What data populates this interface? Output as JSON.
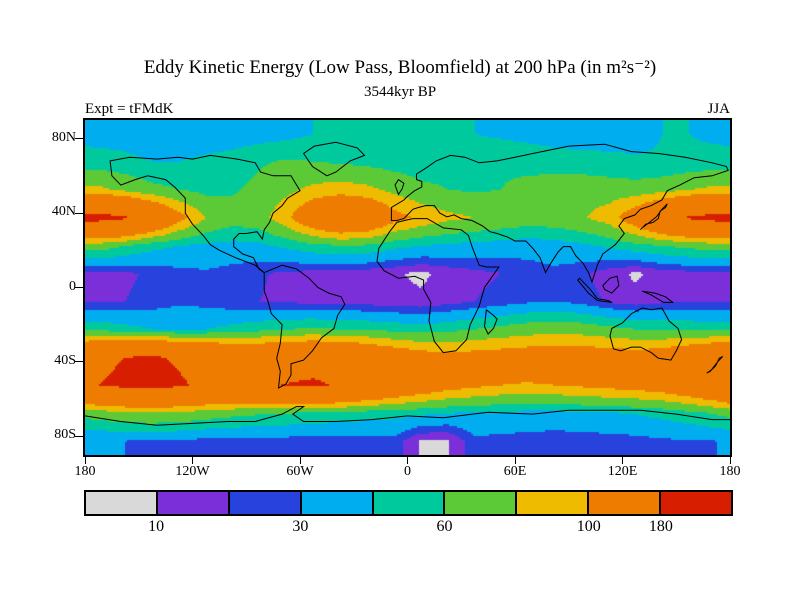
{
  "chart_data": {
    "type": "heatmap",
    "title": "Eddy Kinetic Energy (Low Pass, Bloomfield) at 200 hPa (in m²s⁻²)",
    "subtitle": "3544kyr BP",
    "annotations": {
      "top_left": "Expt = tFMdK",
      "top_right": "JJA"
    },
    "units": "m²s⁻²",
    "axes": {
      "lat_ticks": [
        {
          "label": "80N",
          "value": 80
        },
        {
          "label": "40N",
          "value": 40
        },
        {
          "label": "0",
          "value": 0
        },
        {
          "label": "40S",
          "value": -40
        },
        {
          "label": "80S",
          "value": -80
        }
      ],
      "lon_ticks": [
        {
          "label": "180",
          "value": -180
        },
        {
          "label": "120W",
          "value": -120
        },
        {
          "label": "60W",
          "value": -60
        },
        {
          "label": "0",
          "value": 0
        },
        {
          "label": "60E",
          "value": 60
        },
        {
          "label": "120E",
          "value": 120
        },
        {
          "label": "180",
          "value": 180
        }
      ],
      "lat_range": [
        -90,
        90
      ],
      "lon_range": [
        -180,
        180
      ],
      "grid_lines": false
    },
    "colorbar": {
      "colors": [
        "#d9d9d9",
        "#7a2fd8",
        "#2742dd",
        "#00aeef",
        "#00ca9d",
        "#5cc937",
        "#eebb00",
        "#ee7c00",
        "#d81e00"
      ],
      "levels": [
        10,
        20,
        30,
        45,
        60,
        80,
        100,
        180
      ],
      "labels": [
        {
          "text": "10",
          "boundary_index": 1
        },
        {
          "text": "30",
          "boundary_index": 3
        },
        {
          "text": "60",
          "boundary_index": 5
        },
        {
          "text": "100",
          "boundary_index": 7
        },
        {
          "text": "180",
          "boundary_index": 8
        }
      ]
    },
    "grid": {
      "lon_centers": [
        -172.5,
        -157.5,
        -142.5,
        -127.5,
        -112.5,
        -97.5,
        -82.5,
        -67.5,
        -52.5,
        -37.5,
        -22.5,
        -7.5,
        7.5,
        22.5,
        37.5,
        52.5,
        67.5,
        82.5,
        97.5,
        112.5,
        127.5,
        142.5,
        157.5,
        172.5
      ],
      "lat_centers": [
        82.5,
        67.5,
        52.5,
        37.5,
        22.5,
        7.5,
        -7.5,
        -22.5,
        -37.5,
        -52.5,
        -67.5,
        -82.5
      ],
      "values": [
        [
          40,
          40,
          38,
          38,
          36,
          36,
          38,
          40,
          45,
          50,
          55,
          55,
          50,
          48,
          45,
          42,
          40,
          38,
          38,
          40,
          42,
          45,
          45,
          42
        ],
        [
          50,
          48,
          45,
          45,
          48,
          52,
          58,
          62,
          60,
          58,
          55,
          52,
          50,
          52,
          55,
          58,
          55,
          52,
          50,
          48,
          46,
          46,
          48,
          50
        ],
        [
          85,
          75,
          65,
          60,
          55,
          58,
          65,
          75,
          85,
          90,
          85,
          75,
          65,
          60,
          58,
          60,
          65,
          70,
          72,
          70,
          68,
          72,
          80,
          85
        ],
        [
          195,
          185,
          150,
          110,
          80,
          68,
          72,
          95,
          130,
          150,
          140,
          110,
          95,
          85,
          80,
          75,
          70,
          72,
          78,
          90,
          120,
          160,
          185,
          195
        ],
        [
          70,
          60,
          50,
          45,
          42,
          40,
          42,
          48,
          55,
          60,
          58,
          50,
          45,
          42,
          40,
          38,
          36,
          38,
          42,
          48,
          55,
          60,
          65,
          70
        ],
        [
          16,
          18,
          22,
          26,
          28,
          25,
          21,
          18,
          16,
          15,
          13,
          11,
          8,
          13,
          17,
          20,
          24,
          27,
          22,
          14,
          8,
          14,
          16,
          16
        ],
        [
          18,
          20,
          24,
          28,
          26,
          22,
          20,
          18,
          17,
          16,
          15,
          13,
          12,
          16,
          20,
          24,
          28,
          30,
          26,
          18,
          14,
          18,
          20,
          18
        ],
        [
          55,
          50,
          45,
          42,
          45,
          50,
          55,
          60,
          62,
          60,
          58,
          55,
          52,
          55,
          60,
          65,
          70,
          72,
          70,
          65,
          60,
          58,
          56,
          55
        ],
        [
          170,
          180,
          185,
          175,
          160,
          150,
          145,
          150,
          155,
          150,
          140,
          125,
          115,
          110,
          112,
          115,
          118,
          122,
          120,
          118,
          115,
          120,
          135,
          150
        ],
        [
          180,
          190,
          195,
          185,
          172,
          168,
          172,
          182,
          188,
          175,
          158,
          140,
          125,
          112,
          105,
          100,
          98,
          100,
          104,
          108,
          112,
          118,
          132,
          150
        ],
        [
          70,
          75,
          78,
          75,
          70,
          65,
          62,
          60,
          58,
          55,
          52,
          50,
          48,
          45,
          44,
          42,
          40,
          40,
          42,
          44,
          46,
          50,
          55,
          62
        ],
        [
          30,
          30,
          28,
          28,
          26,
          26,
          25,
          25,
          24,
          24,
          25,
          26,
          9,
          9,
          27,
          26,
          25,
          24,
          24,
          25,
          26,
          28,
          29,
          30
        ]
      ]
    }
  }
}
